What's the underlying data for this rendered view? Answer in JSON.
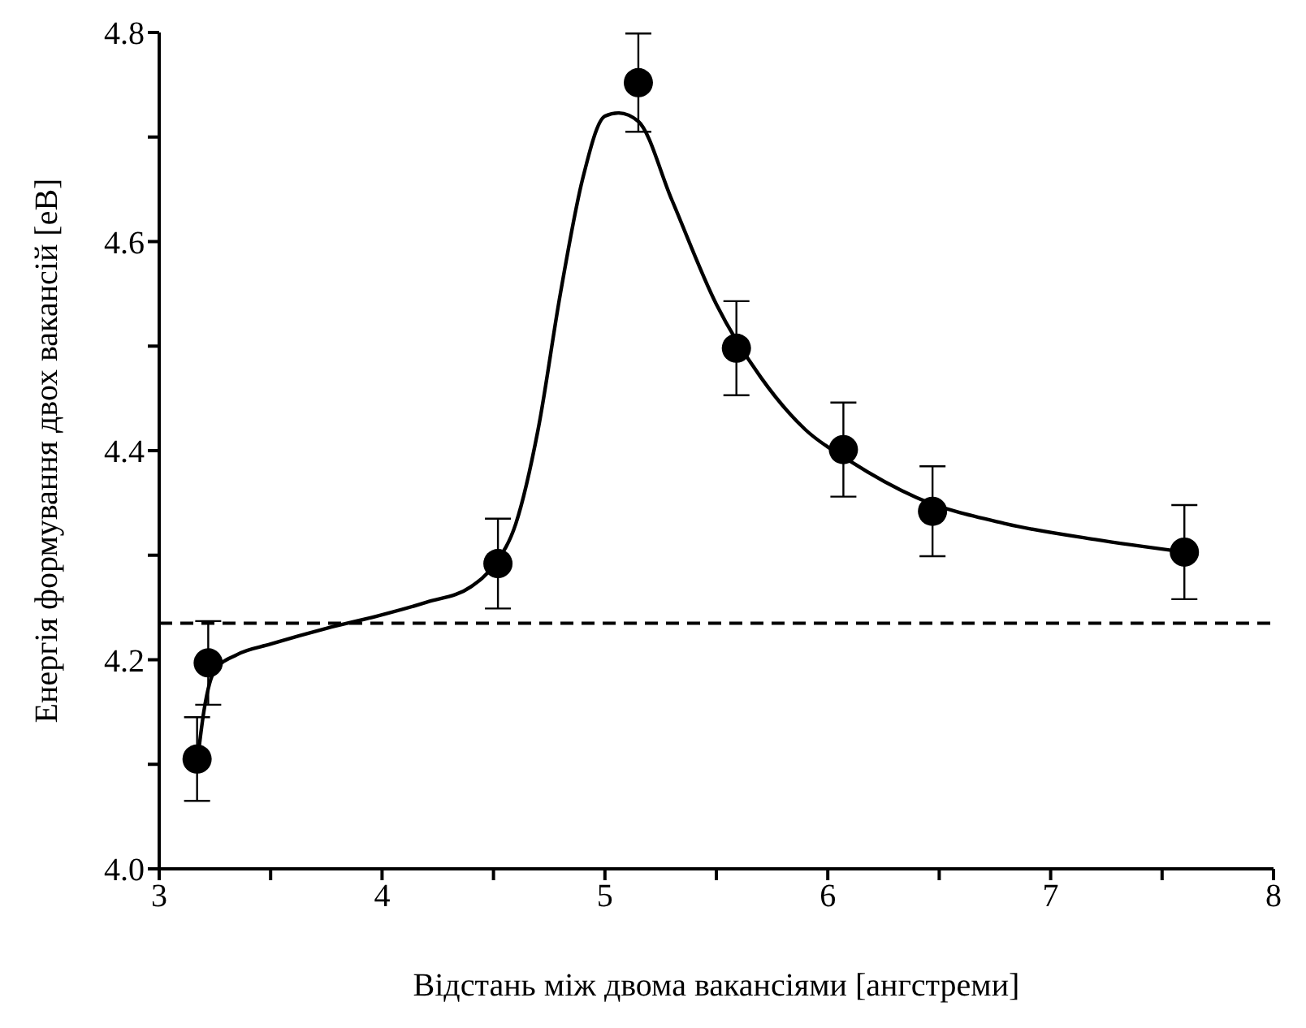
{
  "chart_data": {
    "type": "scatter",
    "xlabel": "Відстань між двома вакансіями [ангстреми]",
    "ylabel": "Енергія формування двох вакансій [еВ]",
    "xlim": [
      3,
      8
    ],
    "ylim": [
      4.0,
      4.8
    ],
    "xticks": [
      3,
      {
        "value": 3.5,
        "label": null
      },
      4,
      {
        "value": 4.5,
        "label": null
      },
      5,
      {
        "value": 5.5,
        "label": null
      },
      6,
      {
        "value": 6.5,
        "label": null
      },
      7,
      {
        "value": 7.5,
        "label": null
      },
      8
    ],
    "yticks": [
      {
        "value": 4,
        "label": "4.0"
      },
      {
        "value": 4.1,
        "label": null
      },
      4.2,
      {
        "value": 4.3,
        "label": null
      },
      4.4,
      {
        "value": 4.5,
        "label": null
      },
      4.6,
      {
        "value": 4.7,
        "label": null
      },
      4.8
    ],
    "grid": false,
    "legend": false,
    "marker": "circle",
    "series": [
      {
        "color": "#000000",
        "x": [
          3.17,
          3.22,
          4.52,
          5.15,
          5.59,
          6.07,
          6.47,
          7.6
        ],
        "values": [
          4.105,
          4.197,
          4.292,
          4.752,
          4.498,
          4.401,
          4.342,
          4.303
        ],
        "errors": [
          0.04,
          0.04,
          0.043,
          0.047,
          0.045,
          0.045,
          0.043,
          0.045
        ]
      },
      {
        "type": "line",
        "color": "#000000",
        "line_style": "solid",
        "marker": "none",
        "x": [
          3.17,
          3.2,
          3.25,
          3.35,
          3.5,
          3.75,
          4.0,
          4.2,
          4.4,
          4.5,
          4.6,
          4.7,
          4.8,
          4.9,
          5.0,
          5.06,
          5.15,
          5.3,
          5.5,
          5.7,
          5.9,
          6.1,
          6.4,
          6.8,
          7.2,
          7.6
        ],
        "values": [
          4.1,
          4.15,
          4.19,
          4.205,
          4.215,
          4.23,
          4.243,
          4.255,
          4.27,
          4.29,
          4.33,
          4.42,
          4.55,
          4.66,
          4.72,
          4.723,
          4.715,
          4.64,
          4.54,
          4.47,
          4.42,
          4.39,
          4.355,
          4.33,
          4.315,
          4.303
        ]
      }
    ],
    "ref_lines": [
      {
        "axis": "y",
        "value": 4.235,
        "line_style": "dashed",
        "color": "#000000"
      }
    ]
  }
}
